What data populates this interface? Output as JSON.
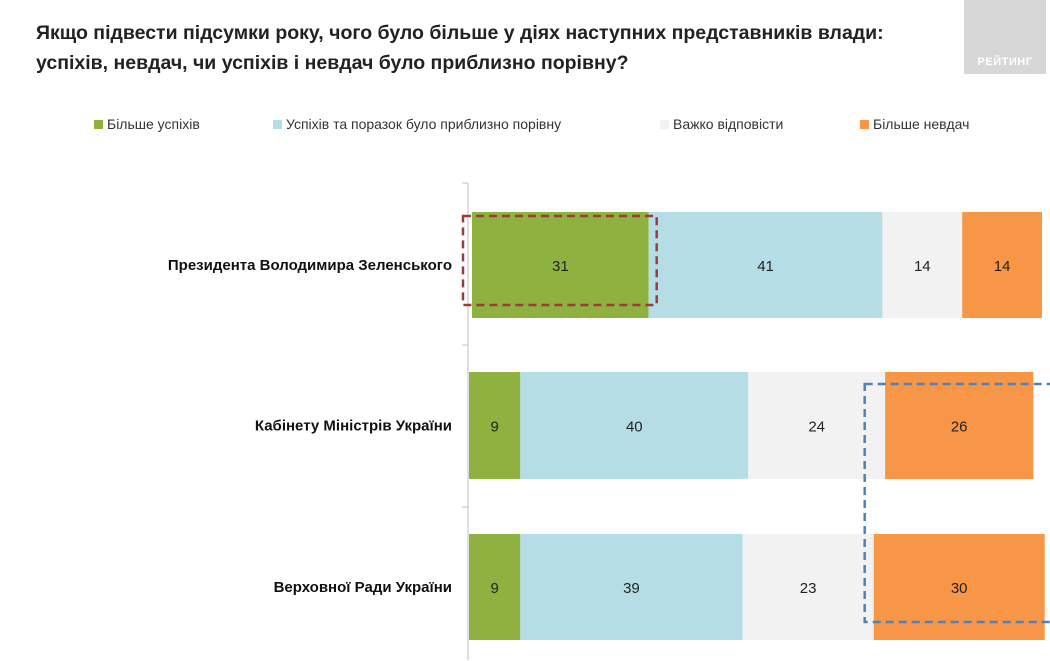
{
  "title": {
    "line1": "Якщо підвести підсумки року, чого було більше у діях наступних представників влади:",
    "line2": "успіхів, невдач, чи успіхів і невдач було приблизно порівну?"
  },
  "logo": {
    "text": "РЕЙТИНГ"
  },
  "colors": {
    "more_success": "#8fb13f",
    "equal": "#b5dde6",
    "hard_to_say": "#f2f2f2",
    "more_failure": "#f79646",
    "highlight_red": "#9c3b3b",
    "highlight_blue": "#4f81bd",
    "axis": "#bfbfbf"
  },
  "chart_data": {
    "type": "bar",
    "orientation": "horizontal",
    "stacked": true,
    "unit": "%",
    "categories": [
      "Президента Володимира Зеленського",
      "Кабінету Міністрів України",
      "Верховної Ради України"
    ],
    "series": [
      {
        "name": "Більше успіхів",
        "color": "#8fb13f",
        "values": [
          31,
          9,
          9
        ]
      },
      {
        "name": "Успіхів та поразок було приблизно порівну",
        "color": "#b5dde6",
        "values": [
          41,
          40,
          39
        ]
      },
      {
        "name": "Важко відповісти",
        "color": "#f2f2f2",
        "values": [
          14,
          24,
          23
        ]
      },
      {
        "name": "Більше невдач",
        "color": "#f79646",
        "values": [
          14,
          26,
          30
        ]
      }
    ],
    "xlim": [
      0,
      100
    ],
    "legend_position": "top",
    "grid": false,
    "highlights": [
      {
        "style": "dashed",
        "color": "red",
        "category": "Президента Володимира Зеленського",
        "series": "Більше успіхів"
      },
      {
        "style": "dashed",
        "color": "blue",
        "categories": [
          "Кабінету Міністрів України",
          "Верховної Ради України"
        ],
        "series": "Більше невдач"
      }
    ]
  }
}
